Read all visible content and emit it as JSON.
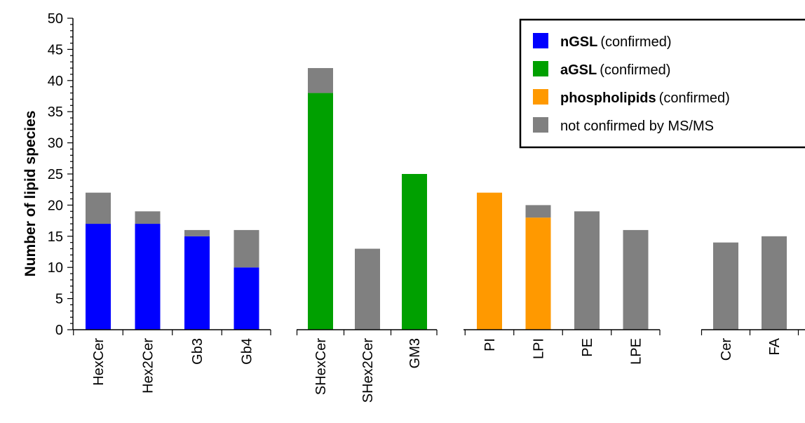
{
  "chart_data": {
    "type": "bar",
    "stacked": true,
    "ylabel": "Number of lipid species",
    "ylim": [
      0,
      50
    ],
    "yticks": [
      0,
      5,
      10,
      15,
      20,
      25,
      30,
      35,
      40,
      45,
      50
    ],
    "groups": [
      {
        "categories": [
          "HexCer",
          "Hex2Cer",
          "Gb3",
          "Gb4"
        ]
      },
      {
        "categories": [
          "SHexCer",
          "SHex2Cer",
          "GM3"
        ]
      },
      {
        "categories": [
          "PI",
          "LPI",
          "PE",
          "LPE"
        ]
      },
      {
        "categories": [
          "Cer",
          "FA"
        ]
      }
    ],
    "bars": [
      {
        "category": "HexCer",
        "confirmed": 17,
        "confirmed_class": "nGSL",
        "not_confirmed": 5
      },
      {
        "category": "Hex2Cer",
        "confirmed": 17,
        "confirmed_class": "nGSL",
        "not_confirmed": 2
      },
      {
        "category": "Gb3",
        "confirmed": 15,
        "confirmed_class": "nGSL",
        "not_confirmed": 1
      },
      {
        "category": "Gb4",
        "confirmed": 10,
        "confirmed_class": "nGSL",
        "not_confirmed": 6
      },
      {
        "category": "SHexCer",
        "confirmed": 38,
        "confirmed_class": "aGSL",
        "not_confirmed": 4
      },
      {
        "category": "SHex2Cer",
        "confirmed": 0,
        "confirmed_class": "aGSL",
        "not_confirmed": 13
      },
      {
        "category": "GM3",
        "confirmed": 25,
        "confirmed_class": "aGSL",
        "not_confirmed": 0
      },
      {
        "category": "PI",
        "confirmed": 22,
        "confirmed_class": "phospholipids",
        "not_confirmed": 0
      },
      {
        "category": "LPI",
        "confirmed": 18,
        "confirmed_class": "phospholipids",
        "not_confirmed": 2
      },
      {
        "category": "PE",
        "confirmed": 0,
        "confirmed_class": "phospholipids",
        "not_confirmed": 19
      },
      {
        "category": "LPE",
        "confirmed": 0,
        "confirmed_class": "phospholipids",
        "not_confirmed": 16
      },
      {
        "category": "Cer",
        "confirmed": 0,
        "confirmed_class": "none",
        "not_confirmed": 14
      },
      {
        "category": "FA",
        "confirmed": 0,
        "confirmed_class": "none",
        "not_confirmed": 15
      }
    ],
    "legend": {
      "placement": "top-right",
      "entries": [
        {
          "bold": "nGSL",
          "text": "(confirmed)",
          "color": "#0000ff"
        },
        {
          "bold": "aGSL",
          "text": "(confirmed)",
          "color": "#00a000"
        },
        {
          "bold": "phospholipids",
          "text": "(confirmed)",
          "color": "#ff9900"
        },
        {
          "bold": "",
          "text": "not confirmed by MS/MS",
          "color": "#808080"
        }
      ]
    },
    "colors": {
      "nGSL": "#0000ff",
      "aGSL": "#00a000",
      "phospholipids": "#ff9900",
      "not_confirmed": "#808080"
    }
  }
}
